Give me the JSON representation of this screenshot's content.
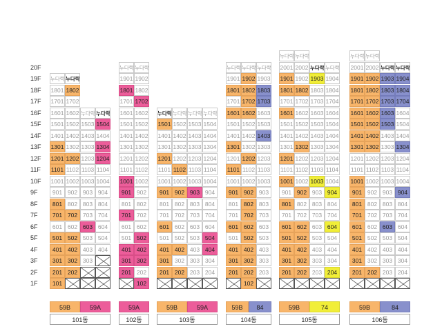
{
  "floors": [
    "20F",
    "19F",
    "18F",
    "17F",
    "16F",
    "15F",
    "14F",
    "13F",
    "12F",
    "11F",
    "10F",
    "9F",
    "8F",
    "7F",
    "6F",
    "5F",
    "4F",
    "3F",
    "2F",
    "1F"
  ],
  "nudarak": "누다락",
  "colors": {
    "59B": "#f8b56a",
    "59A": "#ec5d9a",
    "84": "#8890cc",
    "74": "#f1ee38"
  },
  "buildings": [
    {
      "name": "101동",
      "legend": [
        {
          "label": "59B",
          "color": "ora"
        },
        {
          "label": "59A",
          "color": "pnk"
        }
      ],
      "columns": [
        {
          "top": 19,
          "base": 1,
          "nudarak_style": "gray",
          "orange": [
            13,
            12,
            11,
            8,
            7,
            5,
            4,
            3,
            2,
            1
          ],
          "pink": [],
          "blue": [],
          "yellow": [],
          "bold_only": [],
          "x_floors": []
        },
        {
          "top": 19,
          "base": 1,
          "nudarak_style": "bold",
          "orange": [
            18,
            12,
            7,
            5,
            4,
            3,
            2
          ],
          "pink": [],
          "blue": [],
          "yellow": [],
          "bold_only": [],
          "x_floors": [
            1
          ]
        },
        {
          "top": 16,
          "base": 3,
          "nudarak_style": "gray",
          "orange": [],
          "pink": [
            6
          ],
          "blue": [],
          "yellow": [],
          "bold_only": [],
          "x_floors": [
            1,
            2
          ]
        },
        {
          "top": 16,
          "base": 4,
          "nudarak_style": "bold",
          "orange": [],
          "pink": [
            15,
            13,
            12
          ],
          "blue": [],
          "yellow": [],
          "bold_only": [],
          "x_floors": [
            1,
            2
          ]
        }
      ]
    },
    {
      "name": "102동",
      "legend": [
        {
          "label": "59A",
          "color": "pnk"
        }
      ],
      "columns": [
        {
          "top": 20,
          "base": 1,
          "nudarak_style": "gray",
          "orange": [],
          "pink": [
            18,
            10,
            9,
            7,
            4,
            3,
            2
          ],
          "blue": [],
          "yellow": [],
          "bold_only": [],
          "x_floors": [
            1
          ]
        },
        {
          "top": 20,
          "base": 1,
          "nudarak_style": "gray",
          "orange": [],
          "pink": [
            17,
            5,
            4,
            3,
            1
          ],
          "blue": [],
          "yellow": [],
          "bold_only": [],
          "x_floors": []
        }
      ]
    },
    {
      "name": "103동",
      "legend": [
        {
          "label": "59B",
          "color": "ora"
        },
        {
          "label": "59A",
          "color": "pnk"
        }
      ],
      "columns": [
        {
          "top": 16,
          "base": 2,
          "nudarak_style": "bold",
          "orange": [
            15,
            12,
            9,
            6,
            4,
            3,
            2
          ],
          "pink": [],
          "blue": [],
          "yellow": [],
          "bold_only": [],
          "x_floors": [
            1
          ]
        },
        {
          "top": 16,
          "base": 2,
          "nudarak_style": "gray",
          "orange": [
            11,
            9,
            4,
            2
          ],
          "pink": [],
          "blue": [],
          "yellow": [],
          "bold_only": [],
          "x_floors": [
            1
          ]
        },
        {
          "top": 16,
          "base": 2,
          "nudarak_style": "gray",
          "orange": [],
          "pink": [
            9
          ],
          "blue": [],
          "yellow": [],
          "bold_only": [],
          "x_floors": [
            1
          ]
        },
        {
          "top": 16,
          "base": 2,
          "nudarak_style": "gray",
          "orange": [],
          "pink": [
            5,
            4
          ],
          "blue": [],
          "yellow": [],
          "bold_only": [],
          "x_floors": [
            1
          ]
        }
      ]
    },
    {
      "name": "104동",
      "legend": [
        {
          "label": "59B",
          "color": "ora"
        },
        {
          "label": "84",
          "color": "blu"
        }
      ],
      "columns": [
        {
          "top": 20,
          "base": 2,
          "nudarak_style": "gray",
          "orange": [
            18,
            16,
            13,
            11,
            9,
            6,
            4,
            3,
            2
          ],
          "pink": [],
          "blue": [],
          "yellow": [],
          "bold_only": [],
          "x_floors": [
            1
          ]
        },
        {
          "top": 20,
          "base": 1,
          "nudarak_style": "gray",
          "orange": [
            19,
            18,
            17,
            16,
            12,
            9,
            8,
            7,
            6,
            5,
            4,
            3,
            2,
            1
          ],
          "pink": [],
          "blue": [],
          "yellow": [],
          "bold_only": [],
          "x_floors": []
        },
        {
          "top": 20,
          "base": 2,
          "nudarak_style": "gray",
          "orange": [],
          "pink": [],
          "blue": [
            18,
            17,
            14
          ],
          "yellow": [],
          "bold_only": [],
          "x_floors": [
            1
          ]
        }
      ]
    },
    {
      "name": "105동",
      "legend": [
        {
          "label": "59B",
          "color": "ora"
        },
        {
          "label": "74",
          "color": "yel"
        }
      ],
      "columns": [
        {
          "top": 21,
          "base": 2,
          "nudarak_style": "gray",
          "orange": [
            19,
            18,
            16,
            12,
            10,
            8,
            6,
            5,
            4,
            3,
            2
          ],
          "pink": [],
          "blue": [],
          "yellow": [],
          "bold_only": [],
          "x_floors": [
            1
          ]
        },
        {
          "top": 21,
          "base": 2,
          "nudarak_style": "gray",
          "orange": [
            18,
            13,
            9,
            6,
            5,
            4,
            3,
            2
          ],
          "pink": [],
          "blue": [],
          "yellow": [],
          "bold_only": [],
          "x_floors": [
            1
          ]
        },
        {
          "top": 20,
          "base": 2,
          "nudarak_style": "bold",
          "orange": [],
          "pink": [],
          "blue": [],
          "yellow": [
            19,
            10
          ],
          "bold_only": [],
          "x_floors": [
            1
          ]
        },
        {
          "top": 20,
          "base": 2,
          "nudarak_style": "gray",
          "orange": [],
          "pink": [],
          "blue": [],
          "yellow": [
            9,
            6,
            2
          ],
          "bold_only": [],
          "x_floors": [
            1
          ]
        }
      ]
    },
    {
      "name": "106동",
      "legend": [
        {
          "label": "59B",
          "color": "ora"
        },
        {
          "label": "84",
          "color": "blu"
        }
      ],
      "columns": [
        {
          "top": 21,
          "base": 2,
          "nudarak_style": "gray",
          "orange": [
            19,
            18,
            17,
            16,
            15,
            14,
            13,
            10,
            9,
            8,
            7,
            6,
            5,
            4,
            3,
            2
          ],
          "pink": [],
          "blue": [],
          "yellow": [],
          "bold_only": [],
          "x_floors": [
            1
          ]
        },
        {
          "top": 21,
          "base": 2,
          "nudarak_style": "gray",
          "orange": [
            19,
            18,
            17,
            16,
            15,
            14,
            13,
            2
          ],
          "pink": [],
          "blue": [],
          "yellow": [],
          "bold_only": [],
          "x_floors": [
            1
          ]
        },
        {
          "top": 20,
          "base": 2,
          "nudarak_style": "bold",
          "orange": [],
          "pink": [],
          "blue": [
            19,
            18,
            17,
            16,
            15,
            6
          ],
          "yellow": [],
          "bold_only": [],
          "x_floors": [
            1
          ]
        },
        {
          "top": 20,
          "base": 2,
          "nudarak_style": "bold",
          "orange": [],
          "pink": [],
          "blue": [
            19,
            18,
            17,
            13,
            9
          ],
          "yellow": [],
          "bold_only": [],
          "x_floors": [
            1
          ]
        }
      ]
    }
  ]
}
